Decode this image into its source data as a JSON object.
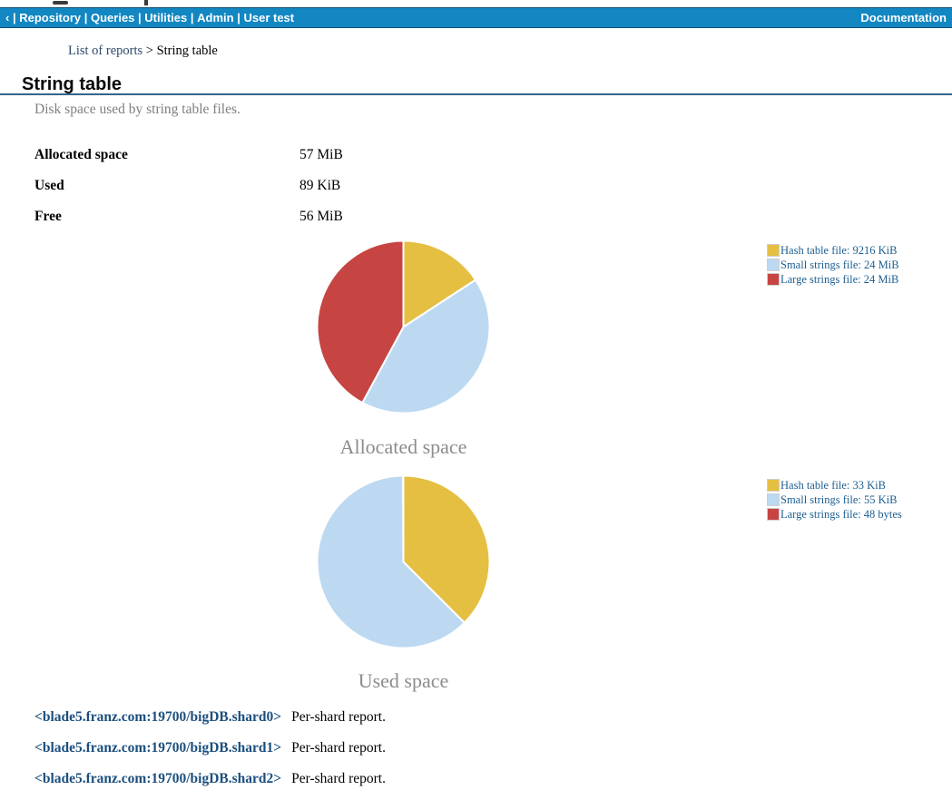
{
  "top_nav": {
    "items": [
      "‹",
      "Repository",
      "Queries",
      "Utilities",
      "Admin",
      "User test"
    ],
    "right_item": "Documentation",
    "separator": "|",
    "bg_color": "#1287c2"
  },
  "breadcrumb": {
    "link": "List of reports",
    "separator": ">",
    "current": "String table"
  },
  "page": {
    "title": "String table",
    "description": "Disk space used by string table files."
  },
  "summary": {
    "rows": [
      {
        "label": "Allocated space",
        "value": "57 MiB"
      },
      {
        "label": "Used",
        "value": "89 KiB"
      },
      {
        "label": "Free",
        "value": "56 MiB"
      }
    ]
  },
  "chart_data": [
    {
      "type": "pie",
      "title": "Allocated space",
      "labels": [
        "Hash table file",
        "Small strings file",
        "Large strings file"
      ],
      "legend_labels": [
        "Hash table file: 9216 KiB",
        "Small strings file: 24 MiB",
        "Large strings file: 24 MiB"
      ],
      "values_bytes": [
        9437184,
        25165824,
        25165824
      ],
      "values_display": [
        "9216 KiB",
        "24 MiB",
        "24 MiB"
      ],
      "colors": [
        "#e5bf42",
        "#bdd9f2",
        "#c64542"
      ],
      "legend_position": "right",
      "start_angle_deg": 0,
      "direction": "clockwise"
    },
    {
      "type": "pie",
      "title": "Used space",
      "labels": [
        "Hash table file",
        "Small strings file",
        "Large strings file"
      ],
      "legend_labels": [
        "Hash table file: 33 KiB",
        "Small strings file: 55 KiB",
        "Large strings file: 48 bytes"
      ],
      "values_bytes": [
        33792,
        56320,
        48
      ],
      "values_display": [
        "33 KiB",
        "55 KiB",
        "48 bytes"
      ],
      "colors": [
        "#e5bf42",
        "#bdd9f2",
        "#c64542"
      ],
      "legend_position": "right",
      "start_angle_deg": 0,
      "direction": "clockwise"
    }
  ],
  "shard_links": [
    {
      "link": "<blade5.franz.com:19700/bigDB.shard0>",
      "text": "Per-shard report."
    },
    {
      "link": "<blade5.franz.com:19700/bigDB.shard1>",
      "text": "Per-shard report."
    },
    {
      "link": "<blade5.franz.com:19700/bigDB.shard2>",
      "text": "Per-shard report."
    }
  ]
}
